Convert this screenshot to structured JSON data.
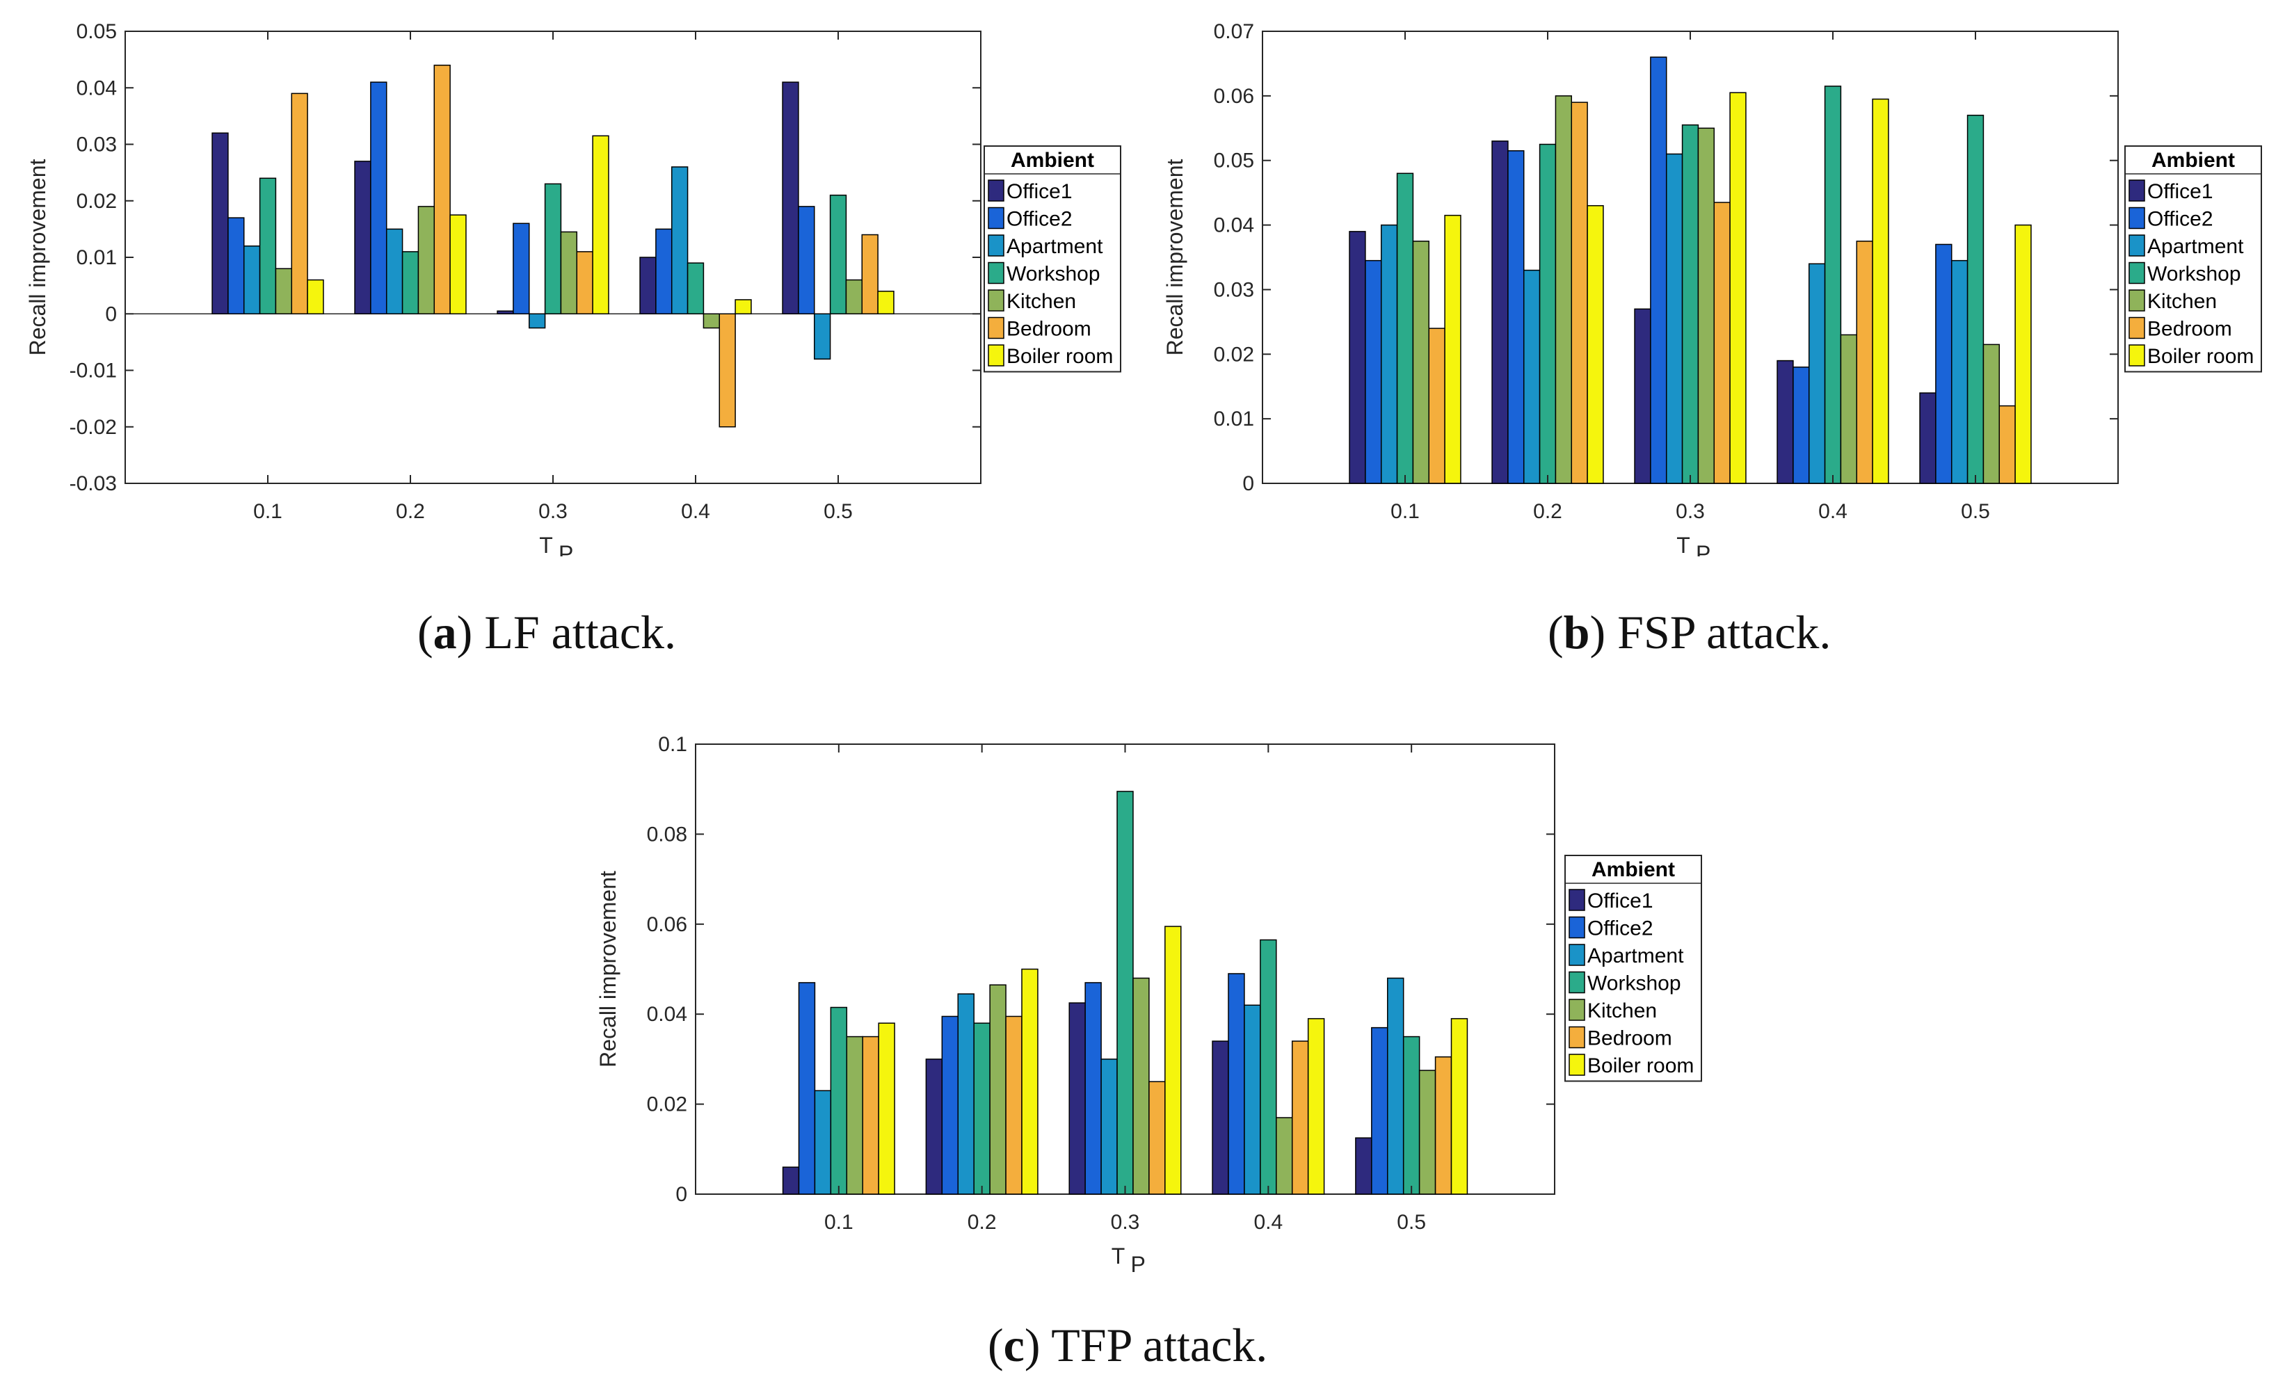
{
  "chart_data": [
    {
      "type": "bar",
      "caption_letter": "a",
      "caption_text": "LF attack.",
      "xlabel": "T",
      "xlabel_sub": "P",
      "ylabel": "Recall improvement",
      "categories": [
        "0.1",
        "0.2",
        "0.3",
        "0.4",
        "0.5"
      ],
      "ylim": [
        -0.03,
        0.05
      ],
      "yticks": [
        "-0.03",
        "-0.02",
        "-0.01",
        "0",
        "0.01",
        "0.02",
        "0.03",
        "0.04",
        "0.05"
      ],
      "legend_title": "Ambient",
      "legend_position": "right",
      "grid": false,
      "series": [
        {
          "name": "Office1",
          "color": "#2e2a7e",
          "values": [
            0.032,
            0.027,
            0.0005,
            0.01,
            0.041
          ]
        },
        {
          "name": "Office2",
          "color": "#1a64d8",
          "values": [
            0.017,
            0.041,
            0.016,
            0.015,
            0.019
          ]
        },
        {
          "name": "Apartment",
          "color": "#1a93c8",
          "values": [
            0.012,
            0.015,
            -0.0025,
            0.026,
            -0.008
          ]
        },
        {
          "name": "Workshop",
          "color": "#2bab8a",
          "values": [
            0.024,
            0.011,
            0.023,
            0.009,
            0.021
          ]
        },
        {
          "name": "Kitchen",
          "color": "#8fb35a",
          "values": [
            0.008,
            0.019,
            0.0145,
            -0.0025,
            0.006
          ]
        },
        {
          "name": "Bedroom",
          "color": "#f4ae3d",
          "values": [
            0.039,
            0.044,
            0.011,
            -0.02,
            0.014
          ]
        },
        {
          "name": "Boiler room",
          "color": "#f5f50d",
          "values": [
            0.006,
            0.0175,
            0.0315,
            0.0025,
            0.004
          ]
        }
      ]
    },
    {
      "type": "bar",
      "caption_letter": "b",
      "caption_text": "FSP attack.",
      "xlabel": "T",
      "xlabel_sub": "P",
      "ylabel": "Recall improvement",
      "categories": [
        "0.1",
        "0.2",
        "0.3",
        "0.4",
        "0.5"
      ],
      "ylim": [
        0,
        0.07
      ],
      "yticks": [
        "0",
        "0.01",
        "0.02",
        "0.03",
        "0.04",
        "0.05",
        "0.06",
        "0.07"
      ],
      "legend_title": "Ambient",
      "legend_position": "right",
      "grid": false,
      "series": [
        {
          "name": "Office1",
          "color": "#2e2a7e",
          "values": [
            0.039,
            0.053,
            0.027,
            0.019,
            0.014
          ]
        },
        {
          "name": "Office2",
          "color": "#1a64d8",
          "values": [
            0.0345,
            0.0515,
            0.066,
            0.018,
            0.037
          ]
        },
        {
          "name": "Apartment",
          "color": "#1a93c8",
          "values": [
            0.04,
            0.033,
            0.051,
            0.034,
            0.0345
          ]
        },
        {
          "name": "Workshop",
          "color": "#2bab8a",
          "values": [
            0.048,
            0.0525,
            0.0555,
            0.0615,
            0.057
          ]
        },
        {
          "name": "Kitchen",
          "color": "#8fb35a",
          "values": [
            0.0375,
            0.06,
            0.055,
            0.023,
            0.0215
          ]
        },
        {
          "name": "Bedroom",
          "color": "#f4ae3d",
          "values": [
            0.024,
            0.059,
            0.0435,
            0.0375,
            0.012
          ]
        },
        {
          "name": "Boiler room",
          "color": "#f5f50d",
          "values": [
            0.0415,
            0.043,
            0.0605,
            0.0595,
            0.04
          ]
        }
      ]
    },
    {
      "type": "bar",
      "caption_letter": "c",
      "caption_text": "TFP attack.",
      "xlabel": "T",
      "xlabel_sub": "P",
      "ylabel": "Recall improvement",
      "categories": [
        "0.1",
        "0.2",
        "0.3",
        "0.4",
        "0.5"
      ],
      "ylim": [
        0,
        0.1
      ],
      "yticks": [
        "0",
        "0.02",
        "0.04",
        "0.06",
        "0.08",
        "0.1"
      ],
      "legend_title": "Ambient",
      "legend_position": "right",
      "grid": false,
      "series": [
        {
          "name": "Office1",
          "color": "#2e2a7e",
          "values": [
            0.006,
            0.03,
            0.0425,
            0.034,
            0.0125
          ]
        },
        {
          "name": "Office2",
          "color": "#1a64d8",
          "values": [
            0.047,
            0.0395,
            0.047,
            0.049,
            0.037
          ]
        },
        {
          "name": "Apartment",
          "color": "#1a93c8",
          "values": [
            0.023,
            0.0445,
            0.03,
            0.042,
            0.048
          ]
        },
        {
          "name": "Workshop",
          "color": "#2bab8a",
          "values": [
            0.0415,
            0.038,
            0.0895,
            0.0565,
            0.035
          ]
        },
        {
          "name": "Kitchen",
          "color": "#8fb35a",
          "values": [
            0.035,
            0.0465,
            0.048,
            0.017,
            0.0275
          ]
        },
        {
          "name": "Bedroom",
          "color": "#f4ae3d",
          "values": [
            0.035,
            0.0395,
            0.025,
            0.034,
            0.0305
          ]
        },
        {
          "name": "Boiler room",
          "color": "#f5f50d",
          "values": [
            0.038,
            0.05,
            0.0595,
            0.039,
            0.039
          ]
        }
      ]
    }
  ]
}
